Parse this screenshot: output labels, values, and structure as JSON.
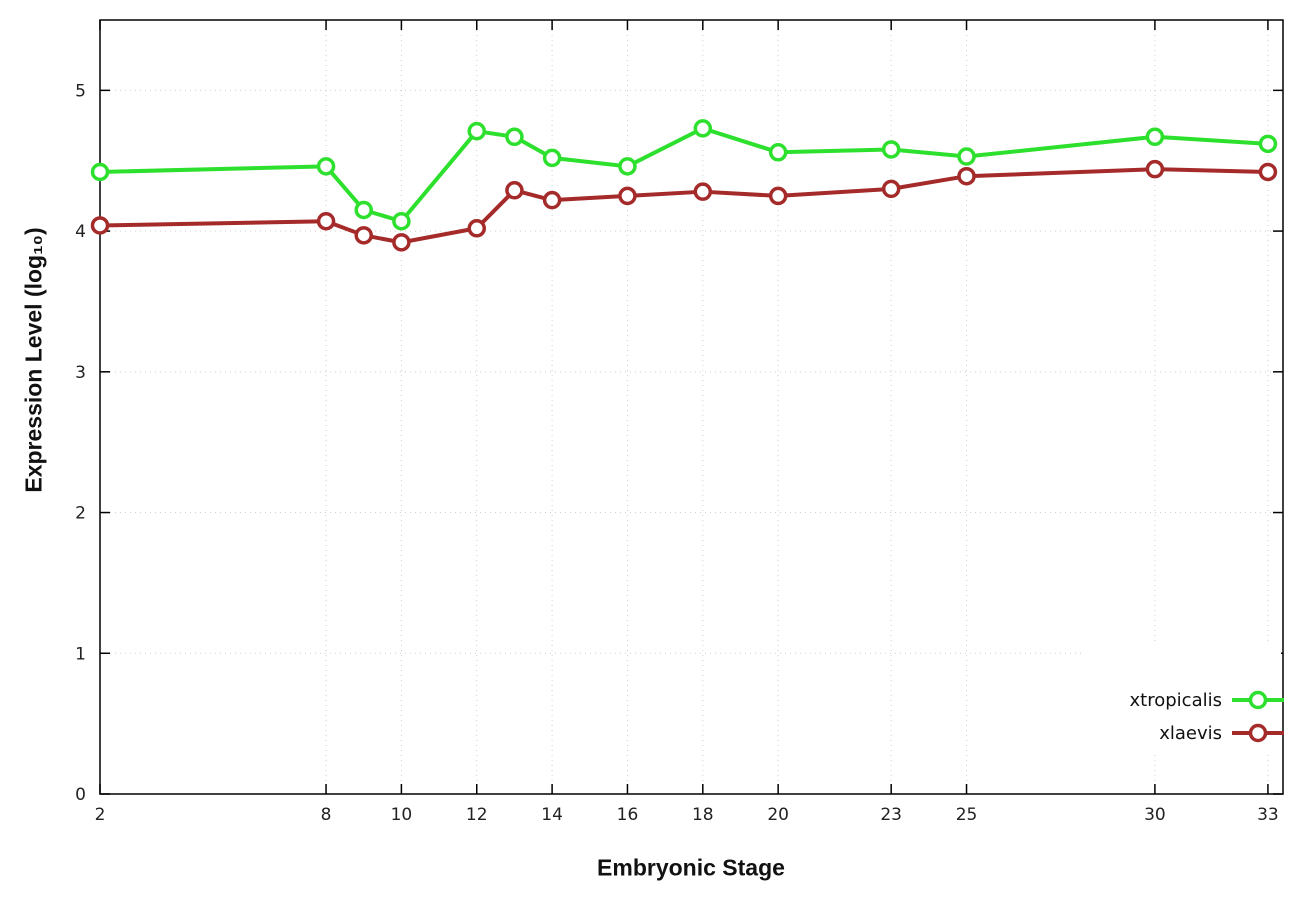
{
  "chart_data": {
    "type": "line",
    "title": "",
    "xlabel": "Embryonic Stage",
    "ylabel": "Expression Level (log₁₀)",
    "x": [
      2,
      8,
      9,
      10,
      12,
      13,
      14,
      16,
      18,
      20,
      23,
      25,
      30,
      33
    ],
    "x_ticks": [
      2,
      8,
      10,
      12,
      14,
      16,
      18,
      20,
      23,
      25,
      30,
      33
    ],
    "y_ticks": [
      0,
      1,
      2,
      3,
      4,
      5
    ],
    "xlim": [
      2,
      33.4
    ],
    "ylim": [
      0,
      5.5
    ],
    "grid": true,
    "legend_position": "bottom-right-inside",
    "marker": "open-circle",
    "series": [
      {
        "name": "xtropicalis",
        "color": "#2ee02e",
        "values": [
          4.42,
          4.46,
          4.15,
          4.07,
          4.71,
          4.67,
          4.52,
          4.46,
          4.73,
          4.56,
          4.58,
          4.53,
          4.67,
          4.62
        ]
      },
      {
        "name": "xlaevis",
        "color": "#a52a2a",
        "values": [
          4.04,
          4.07,
          3.97,
          3.92,
          4.02,
          4.29,
          4.22,
          4.25,
          4.28,
          4.25,
          4.3,
          4.39,
          4.44,
          4.42
        ]
      }
    ],
    "colors": {
      "grid": "#cfcfcf",
      "axis": "#000000",
      "background": "#ffffff"
    }
  }
}
